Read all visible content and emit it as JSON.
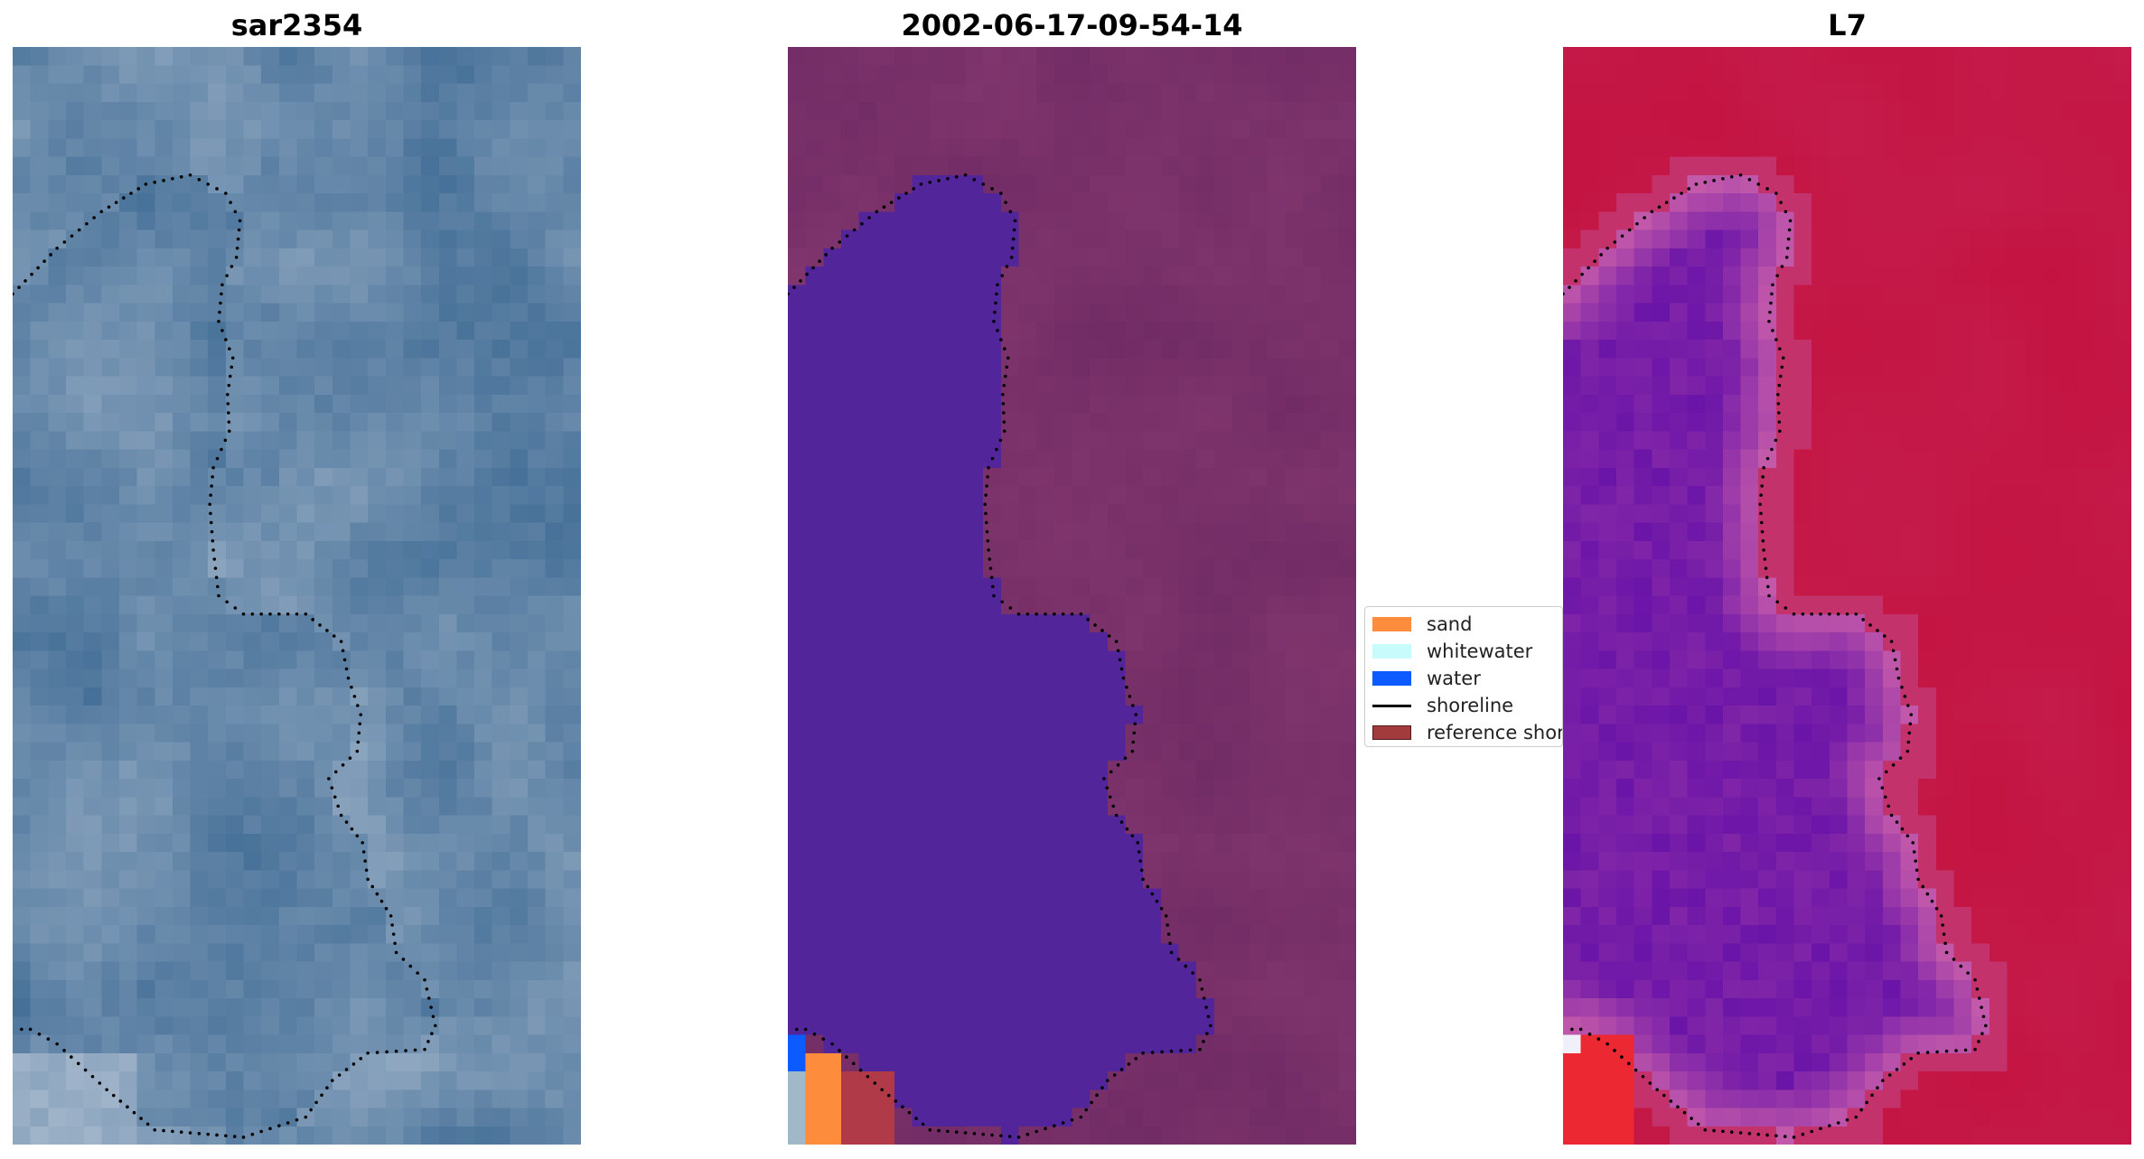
{
  "panels": {
    "left_title": "sar2354",
    "middle_title": "2002-06-17-09-54-14",
    "right_title": "L7"
  },
  "legend": {
    "items": [
      {
        "label": "sand",
        "color": "#fe8c3d",
        "kind": "patch"
      },
      {
        "label": "whitewater",
        "color": "#c8fbfb",
        "kind": "patch"
      },
      {
        "label": "water",
        "color": "#0c5bff",
        "kind": "patch"
      },
      {
        "label": "shoreline",
        "color": "#000000",
        "kind": "line"
      },
      {
        "label": "reference shoreline",
        "color": "#a23b3b",
        "kind": "patch"
      }
    ]
  },
  "colors": {
    "rgb_base": "#3f6b94",
    "rgb_light": "#9fb3c9",
    "mask_water": "#53259a",
    "mask_land": "#6f2a64",
    "index_high": "#c41340",
    "index_low": "#6a14a8",
    "shoreline_dots": "#000000"
  }
}
